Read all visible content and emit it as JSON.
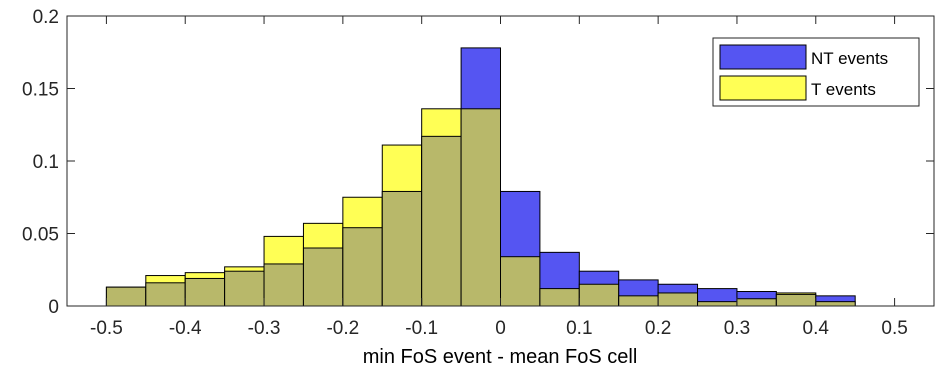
{
  "chart_data": {
    "type": "bar",
    "subtype": "overlapping-histogram",
    "bin_edges": [
      -0.5,
      -0.45,
      -0.4,
      -0.35,
      -0.3,
      -0.25,
      -0.2,
      -0.15,
      -0.1,
      -0.05,
      0,
      0.05,
      0.1,
      0.15,
      0.2,
      0.25,
      0.3,
      0.35,
      0.4,
      0.45,
      0.5
    ],
    "series": [
      {
        "name": "NT events",
        "color": "#5555f2",
        "values": [
          0.013,
          0.016,
          0.019,
          0.024,
          0.029,
          0.04,
          0.054,
          0.079,
          0.117,
          0.178,
          0.079,
          0.037,
          0.024,
          0.018,
          0.015,
          0.012,
          0.01,
          0.008,
          0.007,
          0.0
        ]
      },
      {
        "name": "T events",
        "color": "#ffff55",
        "values": [
          0.013,
          0.021,
          0.023,
          0.027,
          0.048,
          0.057,
          0.075,
          0.111,
          0.136,
          0.136,
          0.034,
          0.012,
          0.015,
          0.007,
          0.009,
          0.003,
          0.005,
          0.009,
          0.003,
          0.0
        ]
      }
    ],
    "overlap_color": "#b8b86a",
    "xlabel": "min FoS event - mean FoS cell",
    "ylabel": "",
    "title": "",
    "xlim": [
      -0.55,
      0.55
    ],
    "ylim": [
      0,
      0.2
    ],
    "xticks": [
      -0.5,
      -0.4,
      -0.3,
      -0.2,
      -0.1,
      0,
      0.1,
      0.2,
      0.3,
      0.4,
      0.5
    ],
    "xtick_labels": [
      "-0.5",
      "-0.4",
      "-0.3",
      "-0.2",
      "-0.1",
      "0",
      "0.1",
      "0.2",
      "0.3",
      "0.4",
      "0.5"
    ],
    "yticks": [
      0,
      0.05,
      0.1,
      0.15,
      0.2
    ],
    "ytick_labels": [
      "0",
      "0.05",
      "0.1",
      "0.15",
      "0.2"
    ],
    "grid": false,
    "legend_position": "top-right"
  }
}
